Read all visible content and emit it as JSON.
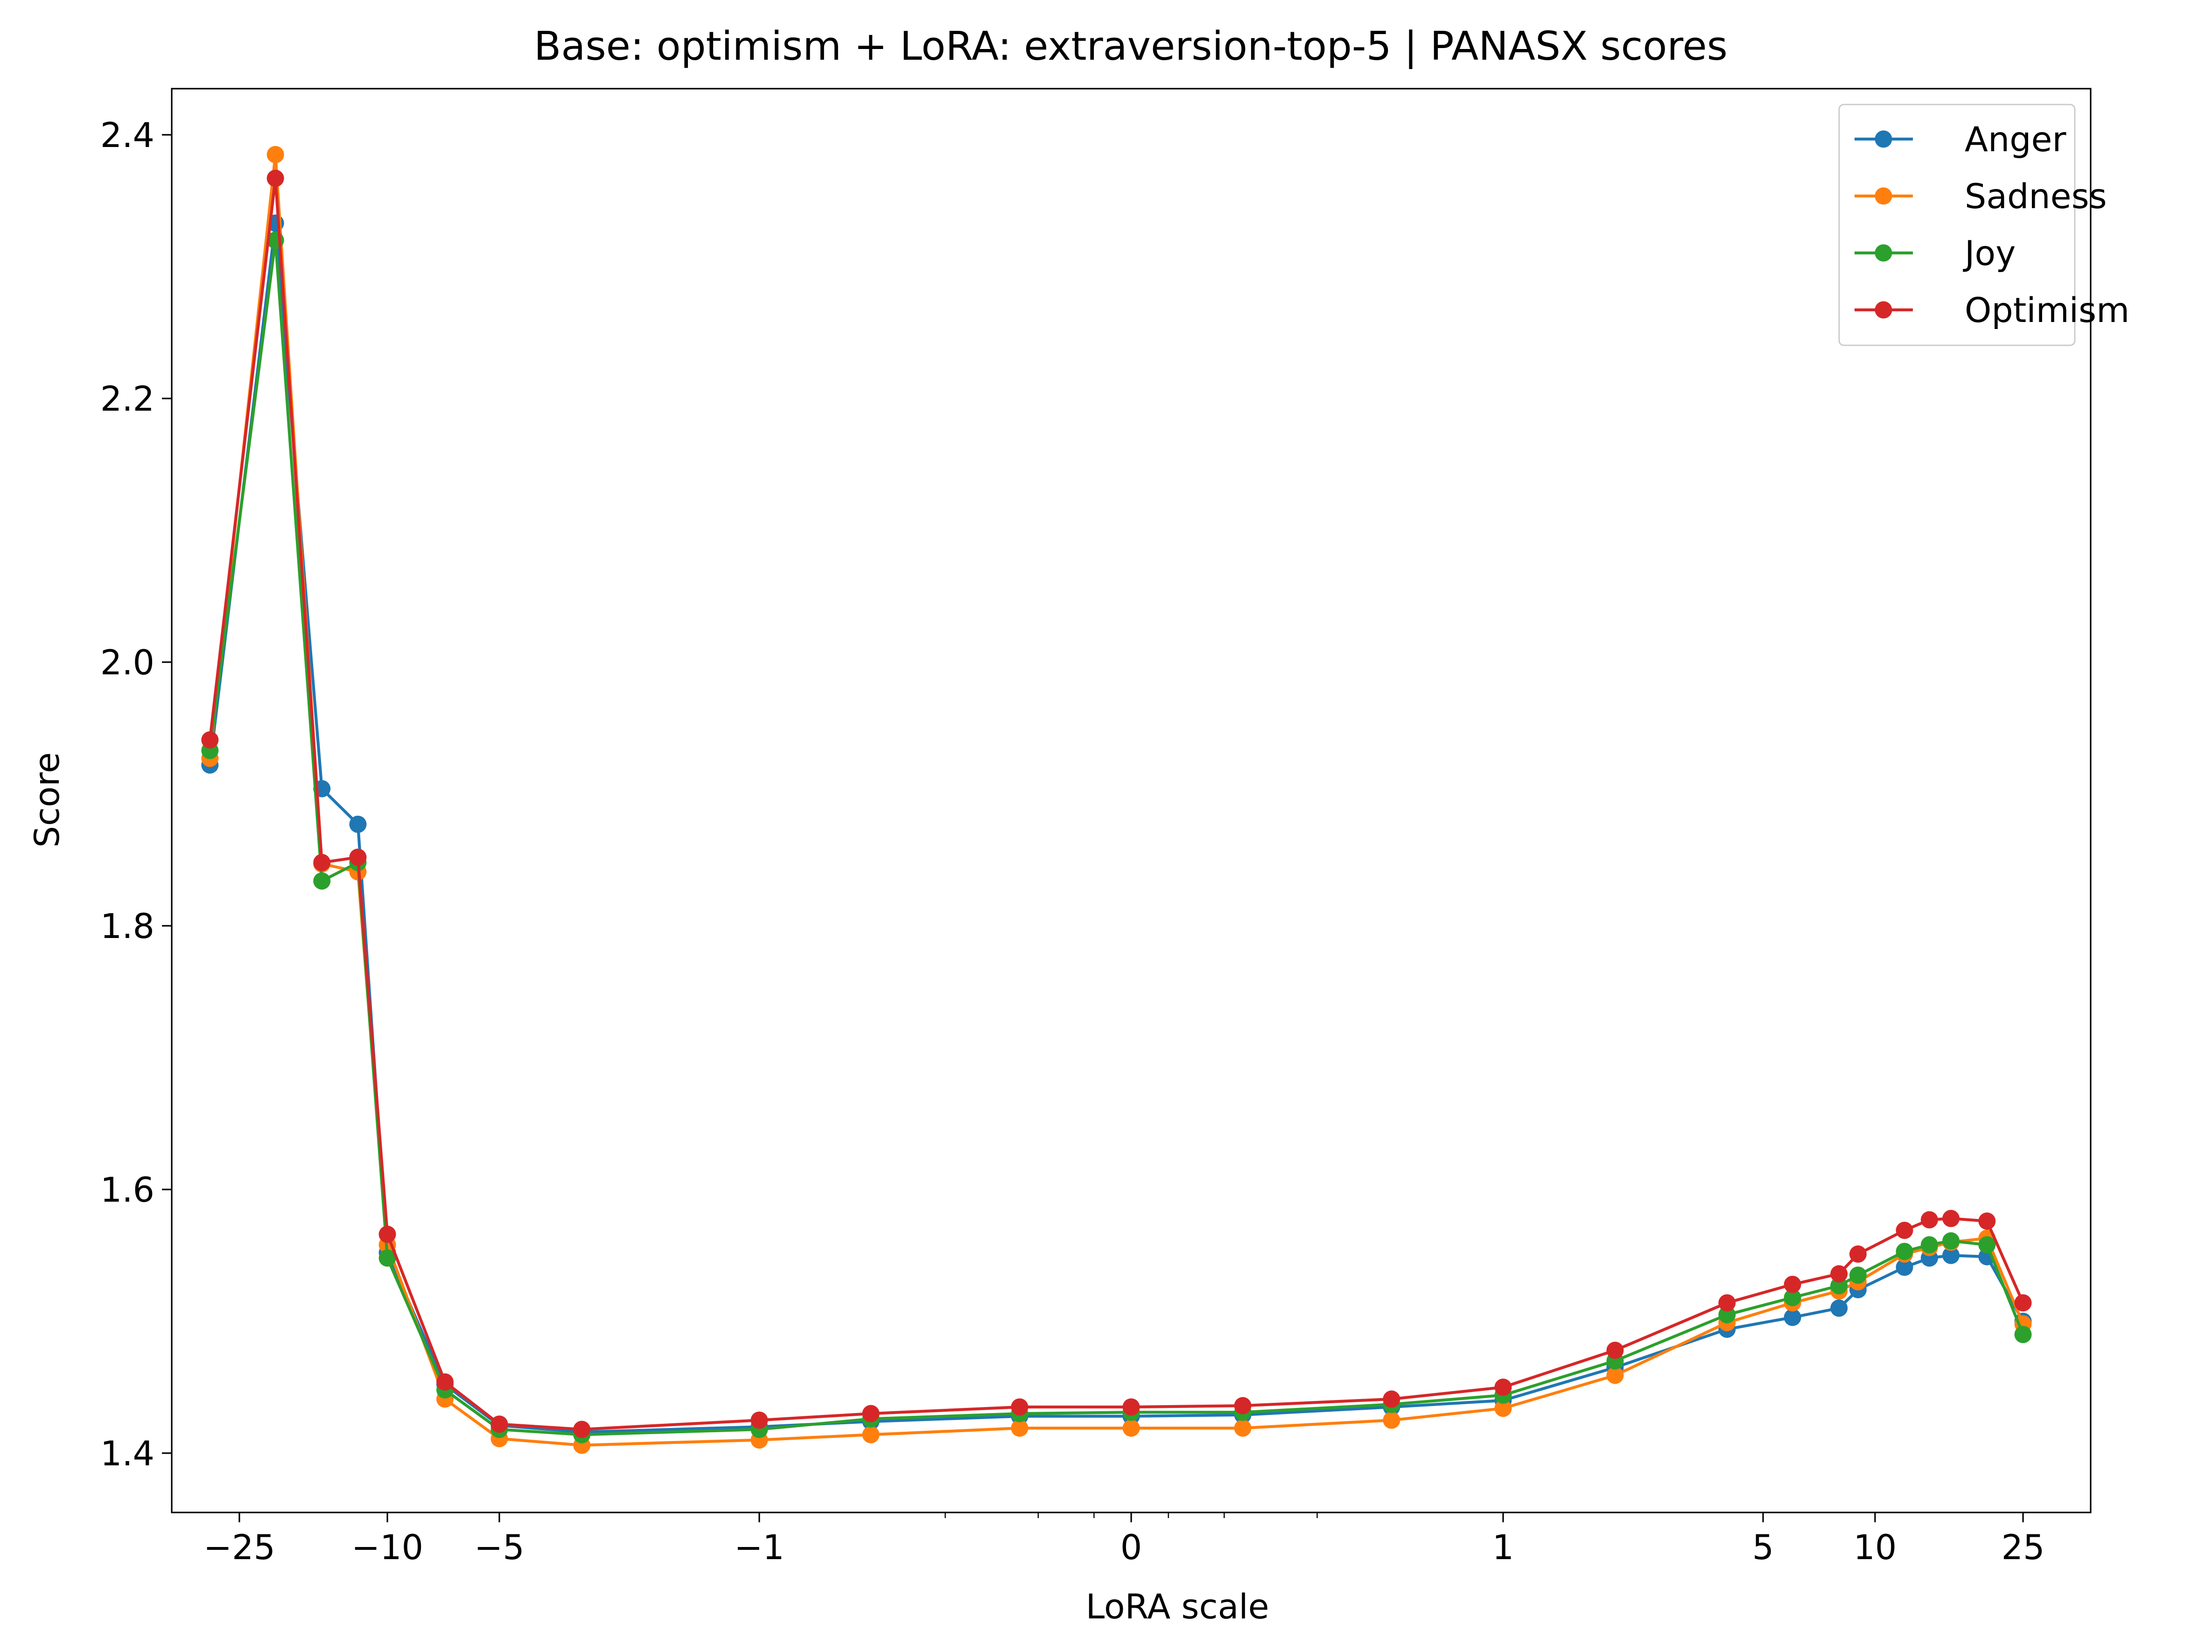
{
  "chart_data": {
    "type": "line",
    "title": "Base: optimism + LoRA: extraversion-top-5 | PANASX scores",
    "xlabel": "LoRA scale",
    "ylabel": "Score",
    "x_scale": "symlog",
    "xlim": [
      -38,
      38
    ],
    "ylim": [
      1.355,
      2.435
    ],
    "x_ticks": [
      {
        "value": -25,
        "label": "−25"
      },
      {
        "value": -10,
        "label": "−10"
      },
      {
        "value": -5,
        "label": "−5"
      },
      {
        "value": -1,
        "label": "−1"
      },
      {
        "value": 0,
        "label": "0"
      },
      {
        "value": 1,
        "label": "1"
      },
      {
        "value": 5,
        "label": "5"
      },
      {
        "value": 10,
        "label": "10"
      },
      {
        "value": 25,
        "label": "25"
      }
    ],
    "x_minor_ticks": [
      -0.5,
      -0.25,
      -0.1,
      0.1,
      0.25,
      0.5
    ],
    "y_ticks": [
      {
        "value": 1.4,
        "label": "1.4"
      },
      {
        "value": 1.6,
        "label": "1.6"
      },
      {
        "value": 1.8,
        "label": "1.8"
      },
      {
        "value": 2.0,
        "label": "2.0"
      },
      {
        "value": 2.2,
        "label": "2.2"
      },
      {
        "value": 2.4,
        "label": "2.4"
      }
    ],
    "x": [
      -30,
      -20,
      -15,
      -12,
      -10,
      -7,
      -5,
      -3,
      -1,
      -0.7,
      -0.3,
      0,
      0.3,
      0.7,
      1,
      2,
      4,
      6,
      8,
      9,
      12,
      14,
      16,
      20,
      25
    ],
    "series": [
      {
        "name": "Anger",
        "color": "#1f77b4",
        "values": [
          1.922,
          2.333,
          1.904,
          1.877,
          1.552,
          1.452,
          1.421,
          1.416,
          1.42,
          1.424,
          1.428,
          1.428,
          1.429,
          1.435,
          1.44,
          1.465,
          1.494,
          1.503,
          1.51,
          1.524,
          1.541,
          1.548,
          1.55,
          1.549,
          1.5
        ]
      },
      {
        "name": "Sadness",
        "color": "#ff7f0e",
        "values": [
          1.927,
          2.385,
          1.847,
          1.841,
          1.558,
          1.441,
          1.411,
          1.406,
          1.41,
          1.414,
          1.419,
          1.419,
          1.419,
          1.425,
          1.434,
          1.459,
          1.499,
          1.514,
          1.523,
          1.53,
          1.551,
          1.556,
          1.56,
          1.563,
          1.498
        ]
      },
      {
        "name": "Joy",
        "color": "#2ca02c",
        "values": [
          1.933,
          2.32,
          1.834,
          1.848,
          1.548,
          1.448,
          1.418,
          1.414,
          1.418,
          1.426,
          1.43,
          1.431,
          1.431,
          1.437,
          1.444,
          1.47,
          1.505,
          1.518,
          1.527,
          1.535,
          1.553,
          1.558,
          1.561,
          1.558,
          1.49
        ]
      },
      {
        "name": "Optimism",
        "color": "#d62728",
        "values": [
          1.941,
          2.367,
          1.848,
          1.852,
          1.566,
          1.454,
          1.422,
          1.418,
          1.425,
          1.43,
          1.435,
          1.435,
          1.436,
          1.441,
          1.45,
          1.478,
          1.514,
          1.528,
          1.536,
          1.551,
          1.569,
          1.577,
          1.578,
          1.576,
          1.514
        ]
      }
    ],
    "legend": {
      "position": "top-right"
    },
    "grid": false
  }
}
